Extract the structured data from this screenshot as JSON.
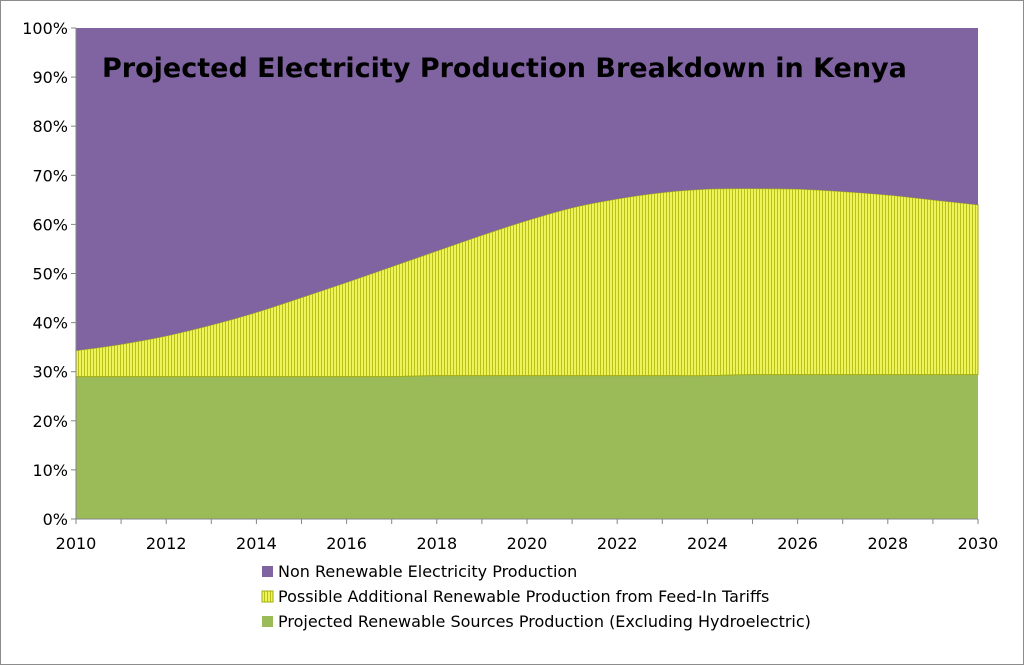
{
  "chart_data": {
    "type": "area",
    "stacked": true,
    "title": "Projected Electricity Production Breakdown in Kenya",
    "xlabel": "",
    "ylabel": "",
    "x": [
      2010,
      2011,
      2012,
      2013,
      2014,
      2015,
      2016,
      2017,
      2018,
      2019,
      2020,
      2021,
      2022,
      2023,
      2024,
      2025,
      2026,
      2027,
      2028,
      2029,
      2030
    ],
    "xlim": [
      2010,
      2030
    ],
    "ylim": [
      0,
      100
    ],
    "x_ticks": [
      "2010",
      "2012",
      "2014",
      "2016",
      "2018",
      "2020",
      "2022",
      "2024",
      "2026",
      "2028",
      "2030"
    ],
    "y_ticks": [
      "0%",
      "10%",
      "20%",
      "30%",
      "40%",
      "50%",
      "60%",
      "70%",
      "80%",
      "90%",
      "100%"
    ],
    "series": [
      {
        "name": "Projected Renewable Sources Production (Excluding Hydroelectric)",
        "color": "#9bbb59",
        "values": [
          29,
          29,
          29,
          29,
          29,
          29,
          29,
          29,
          29.2,
          29.2,
          29.2,
          29.2,
          29.2,
          29.2,
          29.2,
          29.4,
          29.4,
          29.4,
          29.4,
          29.4,
          29.4
        ]
      },
      {
        "name": "Possible Additional Renewable Production from Feed-In Tariffs",
        "color": "#e6f21e",
        "values": [
          5.3,
          6.6,
          8.3,
          10.5,
          13.1,
          16.1,
          19.2,
          22.4,
          25.4,
          28.6,
          31.6,
          34.2,
          36.0,
          37.3,
          38.0,
          37.9,
          37.8,
          37.3,
          36.6,
          35.6,
          34.6
        ]
      },
      {
        "name": "Non Renewable Electricity Production",
        "color": "#8064a2",
        "values": [
          65.7,
          64.4,
          62.7,
          60.5,
          57.9,
          54.9,
          51.8,
          48.6,
          45.4,
          42.2,
          39.2,
          36.6,
          34.8,
          33.5,
          32.8,
          32.7,
          32.8,
          33.3,
          34.0,
          35.0,
          36.0
        ]
      }
    ],
    "legend": {
      "position": "bottom",
      "entries": [
        "Non Renewable Electricity Production",
        "Possible Additional Renewable Production from Feed-In Tariffs",
        "Projected Renewable Sources Production (Excluding Hydroelectric)"
      ]
    },
    "grid": false
  }
}
